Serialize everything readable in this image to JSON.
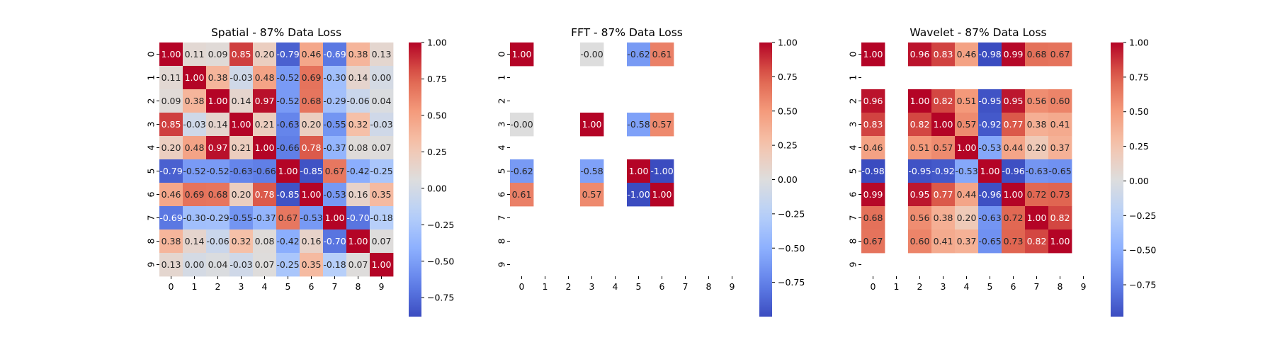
{
  "chart_data": [
    {
      "type": "heatmap",
      "title": "Spatial - 87% Data Loss",
      "x_tick_labels": [
        "0",
        "1",
        "2",
        "3",
        "4",
        "5",
        "6",
        "7",
        "8",
        "9"
      ],
      "y_tick_labels": [
        "0",
        "1",
        "2",
        "3",
        "4",
        "5",
        "6",
        "7",
        "8",
        "9"
      ],
      "colormap": "coolwarm",
      "vmin": -0.88,
      "vmax": 1.0,
      "colorbar_ticks": [
        1.0,
        0.75,
        0.5,
        0.25,
        0.0,
        -0.25,
        -0.5,
        -0.75
      ],
      "colorbar_tick_labels": [
        "1.00",
        "0.75",
        "0.50",
        "0.25",
        "0.00",
        "−0.25",
        "−0.50",
        "−0.75"
      ],
      "matrix": [
        [
          1.0,
          0.11,
          0.09,
          0.85,
          0.2,
          -0.79,
          0.46,
          -0.69,
          0.38,
          0.13
        ],
        [
          0.11,
          1.0,
          0.38,
          -0.03,
          0.48,
          -0.52,
          0.69,
          -0.3,
          0.14,
          0.0
        ],
        [
          0.09,
          0.38,
          1.0,
          0.14,
          0.97,
          -0.52,
          0.68,
          -0.29,
          -0.06,
          0.04
        ],
        [
          0.85,
          -0.03,
          0.14,
          1.0,
          0.21,
          -0.63,
          0.2,
          -0.55,
          0.32,
          -0.03
        ],
        [
          0.2,
          0.48,
          0.97,
          0.21,
          1.0,
          -0.66,
          0.78,
          -0.37,
          0.08,
          0.07
        ],
        [
          -0.79,
          -0.52,
          -0.52,
          -0.63,
          -0.66,
          1.0,
          -0.85,
          0.67,
          -0.42,
          -0.25
        ],
        [
          0.46,
          0.69,
          0.68,
          0.2,
          0.78,
          -0.85,
          1.0,
          -0.53,
          0.16,
          0.35
        ],
        [
          -0.69,
          -0.3,
          -0.29,
          -0.55,
          -0.37,
          0.67,
          -0.53,
          1.0,
          -0.7,
          -0.18
        ],
        [
          0.38,
          0.14,
          -0.06,
          0.32,
          0.08,
          -0.42,
          0.16,
          -0.7,
          1.0,
          0.07
        ],
        [
          0.13,
          0.0,
          0.04,
          -0.03,
          0.07,
          -0.25,
          0.35,
          -0.18,
          0.07,
          1.0
        ]
      ]
    },
    {
      "type": "heatmap",
      "title": "FFT - 87% Data Loss",
      "x_tick_labels": [
        "0",
        "1",
        "2",
        "3",
        "4",
        "5",
        "6",
        "7",
        "8",
        "9"
      ],
      "y_tick_labels": [
        "0",
        "1",
        "2",
        "3",
        "4",
        "5",
        "6",
        "7",
        "8",
        "9"
      ],
      "colormap": "coolwarm",
      "vmin": -1.0,
      "vmax": 1.0,
      "colorbar_ticks": [
        1.0,
        0.75,
        0.5,
        0.25,
        0.0,
        -0.25,
        -0.5,
        -0.75
      ],
      "colorbar_tick_labels": [
        "1.00",
        "0.75",
        "0.50",
        "0.25",
        "0.00",
        "−0.25",
        "−0.50",
        "−0.75"
      ],
      "matrix": [
        [
          1.0,
          null,
          null,
          -0.0,
          null,
          -0.62,
          0.61,
          null,
          null,
          null
        ],
        [
          null,
          null,
          null,
          null,
          null,
          null,
          null,
          null,
          null,
          null
        ],
        [
          null,
          null,
          null,
          null,
          null,
          null,
          null,
          null,
          null,
          null
        ],
        [
          -0.0,
          null,
          null,
          1.0,
          null,
          -0.58,
          0.57,
          null,
          null,
          null
        ],
        [
          null,
          null,
          null,
          null,
          null,
          null,
          null,
          null,
          null,
          null
        ],
        [
          -0.62,
          null,
          null,
          -0.58,
          null,
          1.0,
          -1.0,
          null,
          null,
          null
        ],
        [
          0.61,
          null,
          null,
          0.57,
          null,
          -1.0,
          1.0,
          null,
          null,
          null
        ],
        [
          null,
          null,
          null,
          null,
          null,
          null,
          null,
          null,
          null,
          null
        ],
        [
          null,
          null,
          null,
          null,
          null,
          null,
          null,
          null,
          null,
          null
        ],
        [
          null,
          null,
          null,
          null,
          null,
          null,
          null,
          null,
          null,
          null
        ]
      ]
    },
    {
      "type": "heatmap",
      "title": "Wavelet - 87% Data Loss",
      "x_tick_labels": [
        "0",
        "1",
        "2",
        "3",
        "4",
        "5",
        "6",
        "7",
        "8",
        "9"
      ],
      "y_tick_labels": [
        "0",
        "1",
        "2",
        "3",
        "4",
        "5",
        "6",
        "7",
        "8",
        "9"
      ],
      "colormap": "coolwarm",
      "vmin": -0.98,
      "vmax": 1.0,
      "colorbar_ticks": [
        1.0,
        0.75,
        0.5,
        0.25,
        0.0,
        -0.25,
        -0.5,
        -0.75
      ],
      "colorbar_tick_labels": [
        "1.00",
        "0.75",
        "0.50",
        "0.25",
        "0.00",
        "−0.25",
        "−0.50",
        "−0.75"
      ],
      "matrix": [
        [
          1.0,
          null,
          0.96,
          0.83,
          0.46,
          -0.98,
          0.99,
          0.68,
          0.67,
          null
        ],
        [
          null,
          null,
          null,
          null,
          null,
          null,
          null,
          null,
          null,
          null
        ],
        [
          0.96,
          null,
          1.0,
          0.82,
          0.51,
          -0.95,
          0.95,
          0.56,
          0.6,
          null
        ],
        [
          0.83,
          null,
          0.82,
          1.0,
          0.57,
          -0.92,
          0.77,
          0.38,
          0.41,
          null
        ],
        [
          0.46,
          null,
          0.51,
          0.57,
          1.0,
          -0.53,
          0.44,
          0.2,
          0.37,
          null
        ],
        [
          -0.98,
          null,
          -0.95,
          -0.92,
          -0.53,
          1.0,
          -0.96,
          -0.63,
          -0.65,
          null
        ],
        [
          0.99,
          null,
          0.95,
          0.77,
          0.44,
          -0.96,
          1.0,
          0.72,
          0.73,
          null
        ],
        [
          0.68,
          null,
          0.56,
          0.38,
          0.2,
          -0.63,
          0.72,
          1.0,
          0.82,
          null
        ],
        [
          0.67,
          null,
          0.6,
          0.41,
          0.37,
          -0.65,
          0.73,
          0.82,
          1.0,
          null
        ],
        [
          null,
          null,
          null,
          null,
          null,
          null,
          null,
          null,
          null,
          null
        ]
      ]
    }
  ]
}
